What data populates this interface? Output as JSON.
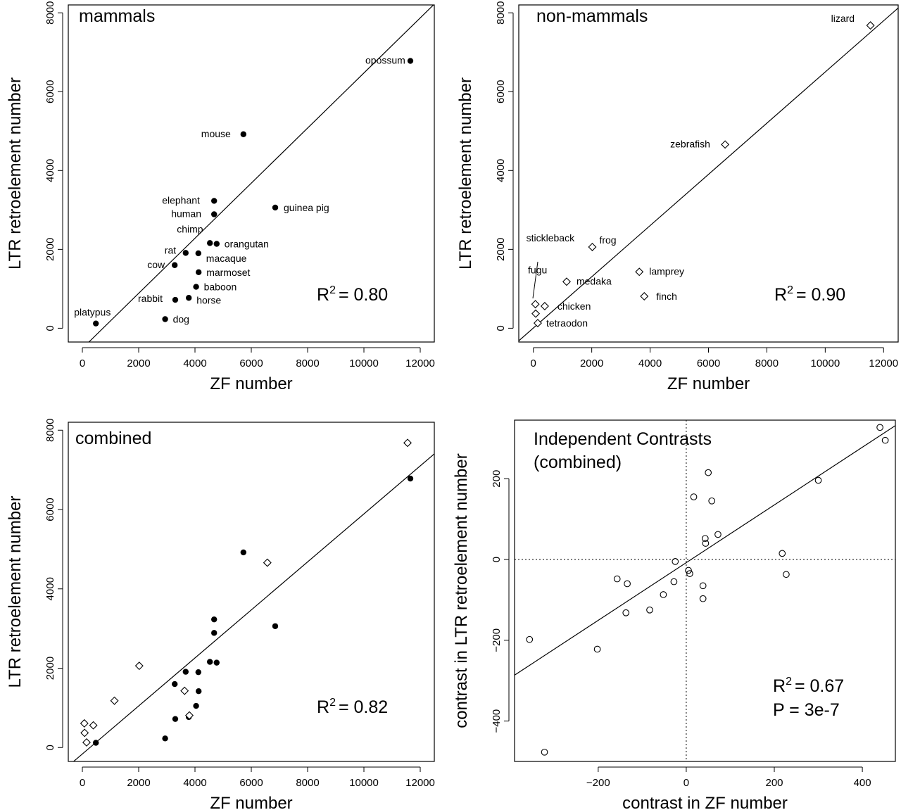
{
  "chart_data": [
    {
      "type": "scatter",
      "panel_id": "mammals",
      "title": "mammals",
      "xlabel": "ZF number",
      "ylabel": "LTR retroelement number",
      "xlim": [
        -500,
        12500
      ],
      "ylim": [
        -350,
        8200
      ],
      "xticks": [
        0,
        2000,
        4000,
        6000,
        8000,
        10000,
        12000
      ],
      "yticks": [
        0,
        2000,
        4000,
        6000,
        8000
      ],
      "stat_lines": [
        {
          "base": "R",
          "sup": "2",
          "rest": "= 0.80"
        }
      ],
      "fit_line": {
        "slope": 0.6986,
        "intercept": -512
      },
      "series": [
        {
          "marker": "filled-circle",
          "points": [
            {
              "label": "opossum",
              "x": 11650,
              "y": 6780
            },
            {
              "label": "mouse",
              "x": 5720,
              "y": 4920
            },
            {
              "label": "elephant",
              "x": 4680,
              "y": 3230
            },
            {
              "label": "human",
              "x": 4680,
              "y": 2890
            },
            {
              "label": "guinea pig",
              "x": 6850,
              "y": 3060
            },
            {
              "label": "chimp",
              "x": 4530,
              "y": 2160
            },
            {
              "label": "orangutan",
              "x": 4770,
              "y": 2140
            },
            {
              "label": "rat",
              "x": 3670,
              "y": 1910
            },
            {
              "label": "macaque",
              "x": 4120,
              "y": 1900
            },
            {
              "label": "cow",
              "x": 3280,
              "y": 1600
            },
            {
              "label": "marmoset",
              "x": 4130,
              "y": 1420
            },
            {
              "label": "baboon",
              "x": 4040,
              "y": 1050
            },
            {
              "label": "horse",
              "x": 3780,
              "y": 770
            },
            {
              "label": "rabbit",
              "x": 3300,
              "y": 720
            },
            {
              "label": "dog",
              "x": 2940,
              "y": 230
            },
            {
              "label": "platypus",
              "x": 480,
              "y": 120
            }
          ]
        }
      ]
    },
    {
      "type": "scatter",
      "panel_id": "non-mammals",
      "title": "non-mammals",
      "xlabel": "ZF number",
      "ylabel": "LTR retroelement number",
      "xlim": [
        -500,
        12500
      ],
      "ylim": [
        -350,
        8200
      ],
      "xticks": [
        0,
        2000,
        4000,
        6000,
        8000,
        10000,
        12000
      ],
      "yticks": [
        0,
        2000,
        4000,
        6000,
        8000
      ],
      "stat_lines": [
        {
          "base": "R",
          "sup": "2",
          "rest": "= 0.90"
        }
      ],
      "fit_line": {
        "slope": 0.6493,
        "intercept": 6
      },
      "series": [
        {
          "marker": "open-diamond",
          "points": [
            {
              "label": "lizard",
              "x": 11550,
              "y": 7680
            },
            {
              "label": "zebrafish",
              "x": 6570,
              "y": 4660
            },
            {
              "label": "frog",
              "x": 2020,
              "y": 2060
            },
            {
              "label": "lamprey",
              "x": 3630,
              "y": 1430
            },
            {
              "label": "medaka",
              "x": 1140,
              "y": 1180
            },
            {
              "label": "finch",
              "x": 3800,
              "y": 810
            },
            {
              "label": "chicken",
              "x": 390,
              "y": 560
            },
            {
              "label": "stickleback",
              "x": 70,
              "y": 610
            },
            {
              "label": "fugu",
              "x": 80,
              "y": 370
            },
            {
              "label": "tetraodon",
              "x": 150,
              "y": 130
            }
          ]
        }
      ]
    },
    {
      "type": "scatter",
      "panel_id": "combined",
      "title": "combined",
      "xlabel": "ZF number",
      "ylabel": "LTR retroelement number",
      "xlim": [
        -500,
        12500
      ],
      "ylim": [
        -350,
        8200
      ],
      "xticks": [
        0,
        2000,
        4000,
        6000,
        8000,
        10000,
        12000
      ],
      "yticks": [
        0,
        2000,
        4000,
        6000,
        8000
      ],
      "stat_lines": [
        {
          "base": "R",
          "sup": "2",
          "rest": "= 0.82"
        }
      ],
      "fit_line": {
        "slope": 0.6052,
        "intercept": -162
      },
      "series": [
        {
          "marker": "filled-circle",
          "points": [
            {
              "x": 11650,
              "y": 6780
            },
            {
              "x": 5720,
              "y": 4920
            },
            {
              "x": 4680,
              "y": 3230
            },
            {
              "x": 4680,
              "y": 2890
            },
            {
              "x": 6850,
              "y": 3060
            },
            {
              "x": 4530,
              "y": 2160
            },
            {
              "x": 4770,
              "y": 2140
            },
            {
              "x": 3670,
              "y": 1910
            },
            {
              "x": 4120,
              "y": 1900
            },
            {
              "x": 3280,
              "y": 1600
            },
            {
              "x": 4130,
              "y": 1420
            },
            {
              "x": 4040,
              "y": 1050
            },
            {
              "x": 3780,
              "y": 770
            },
            {
              "x": 3300,
              "y": 720
            },
            {
              "x": 2940,
              "y": 230
            },
            {
              "x": 480,
              "y": 120
            }
          ]
        },
        {
          "marker": "open-diamond",
          "points": [
            {
              "x": 11550,
              "y": 7680
            },
            {
              "x": 6570,
              "y": 4660
            },
            {
              "x": 2020,
              "y": 2060
            },
            {
              "x": 3630,
              "y": 1430
            },
            {
              "x": 1140,
              "y": 1180
            },
            {
              "x": 3800,
              "y": 810
            },
            {
              "x": 390,
              "y": 560
            },
            {
              "x": 70,
              "y": 610
            },
            {
              "x": 80,
              "y": 370
            },
            {
              "x": 150,
              "y": 130
            }
          ]
        }
      ]
    },
    {
      "type": "scatter",
      "panel_id": "contrasts",
      "title": "Independent Contrasts",
      "subtitle": "(combined)",
      "xlabel": "contrast in ZF number",
      "ylabel": "contrast in LTR retroelement number",
      "xlim": [
        -390,
        475
      ],
      "ylim": [
        -500,
        345
      ],
      "xticks": [
        -200,
        0,
        200,
        400
      ],
      "yticks": [
        -400,
        -200,
        0,
        200
      ],
      "reference_lines": {
        "x": 0,
        "y": 0,
        "style": "dotted"
      },
      "stat_lines": [
        {
          "base": "R",
          "sup": "2",
          "rest": "= 0.67"
        },
        {
          "base": "P = 3e-7",
          "sup": "",
          "rest": ""
        }
      ],
      "fit_line": {
        "slope": 0.7143,
        "intercept": -7.8
      },
      "series": [
        {
          "marker": "open-circle",
          "points": [
            {
              "x": 440,
              "y": 327
            },
            {
              "x": 452,
              "y": 295
            },
            {
              "x": 300,
              "y": 196
            },
            {
              "x": 50,
              "y": 215
            },
            {
              "x": 17,
              "y": 155
            },
            {
              "x": 58,
              "y": 145
            },
            {
              "x": 72,
              "y": 62
            },
            {
              "x": 43,
              "y": 52
            },
            {
              "x": 44,
              "y": 40
            },
            {
              "x": 218,
              "y": 15
            },
            {
              "x": 227,
              "y": -37
            },
            {
              "x": -25,
              "y": -5
            },
            {
              "x": 5,
              "y": -27
            },
            {
              "x": 8,
              "y": -35
            },
            {
              "x": -28,
              "y": -55
            },
            {
              "x": 38,
              "y": -65
            },
            {
              "x": -157,
              "y": -48
            },
            {
              "x": -134,
              "y": -60
            },
            {
              "x": -52,
              "y": -87
            },
            {
              "x": 38,
              "y": -97
            },
            {
              "x": -83,
              "y": -125
            },
            {
              "x": -137,
              "y": -132
            },
            {
              "x": -356,
              "y": -198
            },
            {
              "x": -202,
              "y": -222
            },
            {
              "x": -322,
              "y": -477
            }
          ]
        }
      ]
    }
  ]
}
